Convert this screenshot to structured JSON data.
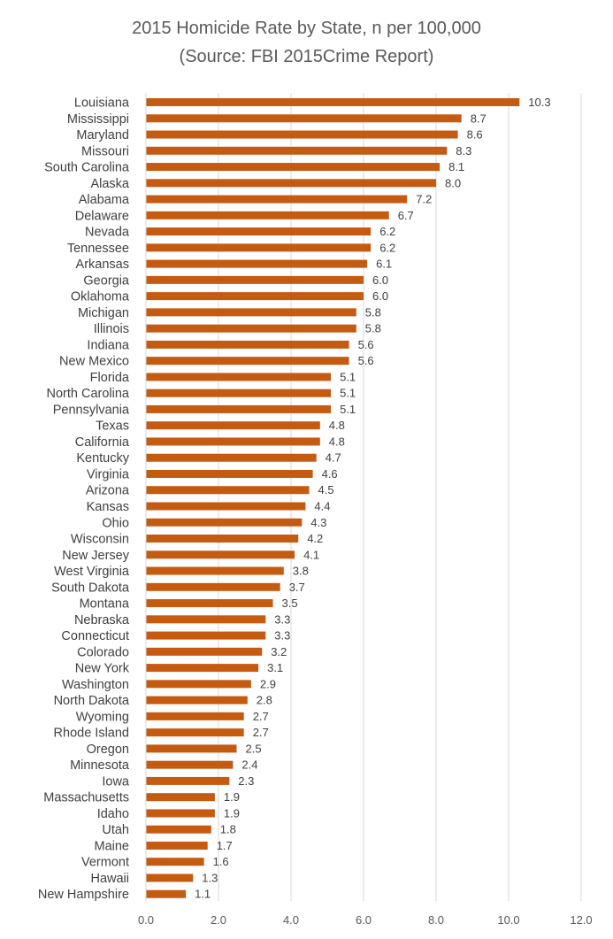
{
  "chart_data": {
    "type": "bar",
    "orientation": "horizontal",
    "title": "2015 Homicide Rate by State, n per 100,000",
    "subtitle": "(Source: FBI 2015Crime Report)",
    "xlabel": "",
    "ylabel": "",
    "xlim": [
      0,
      12
    ],
    "ticks": [
      0,
      2,
      4,
      6,
      8,
      10,
      12
    ],
    "tick_labels": [
      "0.0",
      "2.0",
      "4.0",
      "6.0",
      "8.0",
      "10.0",
      "12.0"
    ],
    "grid": "vertical",
    "legend": "none",
    "bar_color": "#c55a11",
    "grid_color": "#d9d9d9",
    "categories": [
      "Louisiana",
      "Mississippi",
      "Maryland",
      "Missouri",
      "South Carolina",
      "Alaska",
      "Alabama",
      "Delaware",
      "Nevada",
      "Tennessee",
      "Arkansas",
      "Georgia",
      "Oklahoma",
      "Michigan",
      "Illinois",
      "Indiana",
      "New Mexico",
      "Florida",
      "North Carolina",
      "Pennsylvania",
      "Texas",
      "California",
      "Kentucky",
      "Virginia",
      "Arizona",
      "Kansas",
      "Ohio",
      "Wisconsin",
      "New Jersey",
      "West Virginia",
      "South Dakota",
      "Montana",
      "Nebraska",
      "Connecticut",
      "Colorado",
      "New York",
      "Washington",
      "North Dakota",
      "Wyoming",
      "Rhode Island",
      "Oregon",
      "Minnesota",
      "Iowa",
      "Massachusetts",
      "Idaho",
      "Utah",
      "Maine",
      "Vermont",
      "Hawaii",
      "New Hampshire"
    ],
    "values": [
      10.3,
      8.7,
      8.6,
      8.3,
      8.1,
      8.0,
      7.2,
      6.7,
      6.2,
      6.2,
      6.1,
      6.0,
      6.0,
      5.8,
      5.8,
      5.6,
      5.6,
      5.1,
      5.1,
      5.1,
      4.8,
      4.8,
      4.7,
      4.6,
      4.5,
      4.4,
      4.3,
      4.2,
      4.1,
      3.8,
      3.7,
      3.5,
      3.3,
      3.3,
      3.2,
      3.1,
      2.9,
      2.8,
      2.7,
      2.7,
      2.5,
      2.4,
      2.3,
      1.9,
      1.9,
      1.8,
      1.7,
      1.6,
      1.3,
      1.1
    ],
    "value_labels": [
      "10.3",
      "8.7",
      "8.6",
      "8.3",
      "8.1",
      "8.0",
      "7.2",
      "6.7",
      "6.2",
      "6.2",
      "6.1",
      "6.0",
      "6.0",
      "5.8",
      "5.8",
      "5.6",
      "5.6",
      "5.1",
      "5.1",
      "5.1",
      "4.8",
      "4.8",
      "4.7",
      "4.6",
      "4.5",
      "4.4",
      "4.3",
      "4.2",
      "4.1",
      "3.8",
      "3.7",
      "3.5",
      "3.3",
      "3.3",
      "3.2",
      "3.1",
      "2.9",
      "2.8",
      "2.7",
      "2.7",
      "2.5",
      "2.4",
      "2.3",
      "1.9",
      "1.9",
      "1.8",
      "1.7",
      "1.6",
      "1.3",
      "1.1"
    ]
  }
}
